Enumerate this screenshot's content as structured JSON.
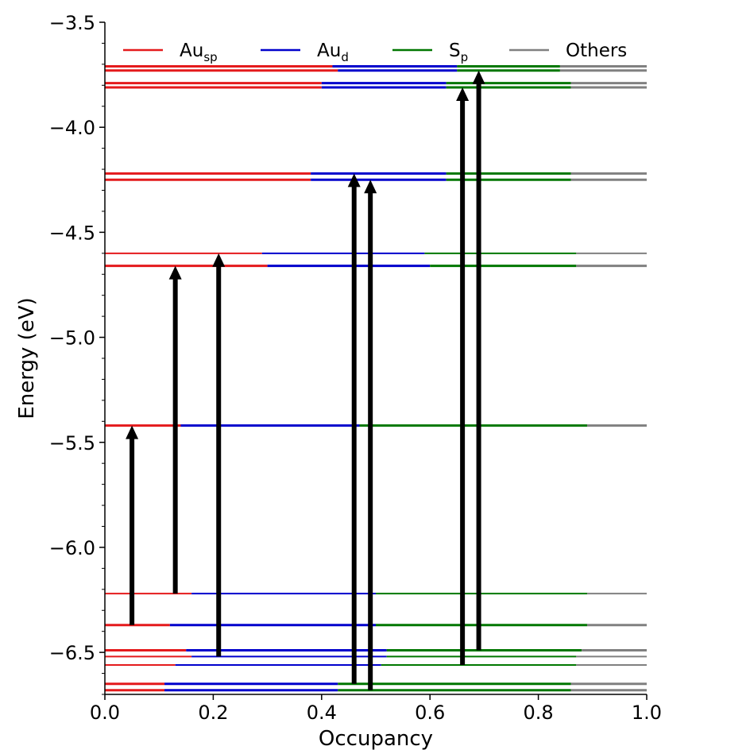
{
  "chart_data": {
    "type": "stacked-horizontal-bar-levels",
    "title": "",
    "xlabel": "Occupancy",
    "ylabel": "Energy (eV)",
    "xlim": [
      0.0,
      1.0
    ],
    "ylim": [
      -6.7,
      -3.5
    ],
    "x_ticks": [
      "0.0",
      "0.2",
      "0.4",
      "0.6",
      "0.8",
      "1.0"
    ],
    "x_tick_values": [
      0.0,
      0.2,
      0.4,
      0.6,
      0.8,
      1.0
    ],
    "y_ticks": [
      "−3.5",
      "−4.0",
      "−4.5",
      "−5.0",
      "−5.5",
      "−6.0",
      "−6.5"
    ],
    "y_tick_values": [
      -3.5,
      -4.0,
      -4.5,
      -5.0,
      -5.5,
      -6.0,
      -6.5
    ],
    "y_minor_step": 0.1,
    "legend_placement": "top",
    "series": [
      {
        "key": "Au_sp",
        "label_main": "Au",
        "label_sub": "sp",
        "color": "#e41a1c"
      },
      {
        "key": "Au_d",
        "label_main": "Au",
        "label_sub": "d",
        "color": "#0000cc"
      },
      {
        "key": "S_p",
        "label_main": "S",
        "label_sub": "p",
        "color": "#007700"
      },
      {
        "key": "Others",
        "label_main": "Others",
        "label_sub": "",
        "color": "#808080"
      }
    ],
    "levels": [
      {
        "energy": -3.71,
        "fractions": [
          0.42,
          0.23,
          0.19,
          0.16
        ],
        "thick": true
      },
      {
        "energy": -3.73,
        "fractions": [
          0.43,
          0.22,
          0.19,
          0.16
        ],
        "thick": true
      },
      {
        "energy": -3.79,
        "fractions": [
          0.4,
          0.23,
          0.23,
          0.14
        ],
        "thick": true
      },
      {
        "energy": -3.81,
        "fractions": [
          0.4,
          0.23,
          0.23,
          0.14
        ],
        "thick": true
      },
      {
        "energy": -4.22,
        "fractions": [
          0.38,
          0.25,
          0.23,
          0.14
        ],
        "thick": true
      },
      {
        "energy": -4.25,
        "fractions": [
          0.38,
          0.25,
          0.23,
          0.14
        ],
        "thick": true
      },
      {
        "energy": -4.6,
        "fractions": [
          0.29,
          0.3,
          0.28,
          0.13
        ],
        "thick": false
      },
      {
        "energy": -4.66,
        "fractions": [
          0.3,
          0.3,
          0.27,
          0.13
        ],
        "thick": true
      },
      {
        "energy": -5.42,
        "fractions": [
          0.14,
          0.33,
          0.42,
          0.11
        ],
        "thick": true
      },
      {
        "energy": -6.22,
        "fractions": [
          0.16,
          0.34,
          0.39,
          0.11
        ],
        "thick": false
      },
      {
        "energy": -6.37,
        "fractions": [
          0.12,
          0.38,
          0.39,
          0.11
        ],
        "thick": true
      },
      {
        "energy": -6.49,
        "fractions": [
          0.15,
          0.37,
          0.36,
          0.12
        ],
        "thick": true
      },
      {
        "energy": -6.52,
        "fractions": [
          0.16,
          0.36,
          0.35,
          0.13
        ],
        "thick": false
      },
      {
        "energy": -6.56,
        "fractions": [
          0.13,
          0.38,
          0.36,
          0.13
        ],
        "thick": false
      },
      {
        "energy": -6.65,
        "fractions": [
          0.11,
          0.32,
          0.43,
          0.14
        ],
        "thick": true
      },
      {
        "energy": -6.68,
        "fractions": [
          0.11,
          0.32,
          0.43,
          0.14
        ],
        "thick": true
      }
    ],
    "transitions": [
      {
        "x": 0.05,
        "from": -6.37,
        "to": -5.42
      },
      {
        "x": 0.13,
        "from": -6.22,
        "to": -4.66
      },
      {
        "x": 0.21,
        "from": -6.52,
        "to": -4.6
      },
      {
        "x": 0.46,
        "from": -6.65,
        "to": -4.22
      },
      {
        "x": 0.49,
        "from": -6.68,
        "to": -4.25
      },
      {
        "x": 0.66,
        "from": -6.56,
        "to": -3.81
      },
      {
        "x": 0.69,
        "from": -6.49,
        "to": -3.73
      }
    ]
  }
}
